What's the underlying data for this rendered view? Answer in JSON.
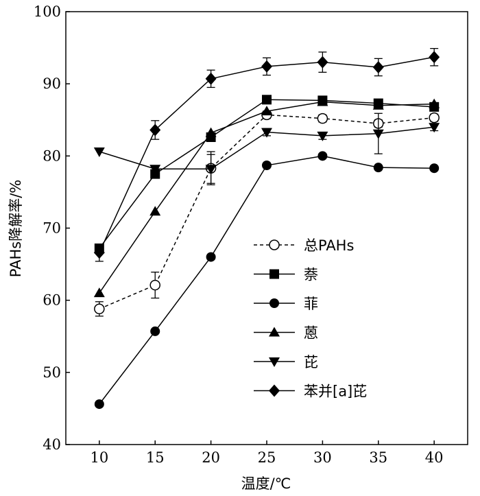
{
  "chart_data": {
    "type": "line",
    "xlabel": "温度/℃",
    "ylabel": "PAHs降解率/%",
    "xlim": [
      7,
      43
    ],
    "ylim": [
      40,
      100
    ],
    "x_ticks": [
      10,
      15,
      20,
      25,
      30,
      35,
      40
    ],
    "y_ticks": [
      40,
      50,
      60,
      70,
      80,
      90,
      100
    ],
    "x": [
      10,
      15,
      20,
      25,
      30,
      35,
      40
    ],
    "grid": false,
    "legend_position": "lower-right (inside plot)",
    "series": [
      {
        "name": "总PAHs",
        "marker": "circle-open",
        "dashed": true,
        "values": [
          58.8,
          62.1,
          78.3,
          85.7,
          85.2,
          84.5,
          85.3
        ],
        "errors": [
          1.0,
          1.8,
          2.3,
          0.5,
          0.5,
          0.5,
          0.5
        ]
      },
      {
        "name": "萘",
        "marker": "square",
        "dashed": false,
        "values": [
          67.2,
          77.5,
          82.6,
          87.8,
          87.7,
          87.3,
          86.8
        ],
        "errors": [
          0.5,
          0.5,
          0.5,
          0.5,
          0.5,
          0.5,
          0.5
        ]
      },
      {
        "name": "菲",
        "marker": "circle",
        "dashed": false,
        "values": [
          45.6,
          55.7,
          66.0,
          78.7,
          80.0,
          78.4,
          78.3
        ],
        "errors": [
          0,
          0,
          0,
          0,
          0,
          0,
          0
        ]
      },
      {
        "name": "蒽",
        "marker": "triangle-up",
        "dashed": false,
        "values": [
          61.0,
          72.3,
          83.2,
          86.2,
          87.5,
          87.0,
          87.2
        ],
        "errors": [
          0,
          0,
          0,
          0,
          0,
          0,
          0
        ]
      },
      {
        "name": "芘",
        "marker": "triangle-down",
        "dashed": false,
        "values": [
          80.6,
          78.2,
          78.2,
          83.3,
          82.8,
          83.1,
          84.0
        ],
        "errors": [
          0,
          0,
          2.0,
          0.5,
          0.5,
          2.8,
          0.5
        ]
      },
      {
        "name": "苯并[a]芘",
        "marker": "diamond",
        "dashed": false,
        "values": [
          66.6,
          83.6,
          90.7,
          92.4,
          93.0,
          92.3,
          93.7
        ],
        "errors": [
          1.2,
          1.3,
          1.2,
          1.2,
          1.4,
          1.2,
          1.2
        ]
      }
    ]
  }
}
